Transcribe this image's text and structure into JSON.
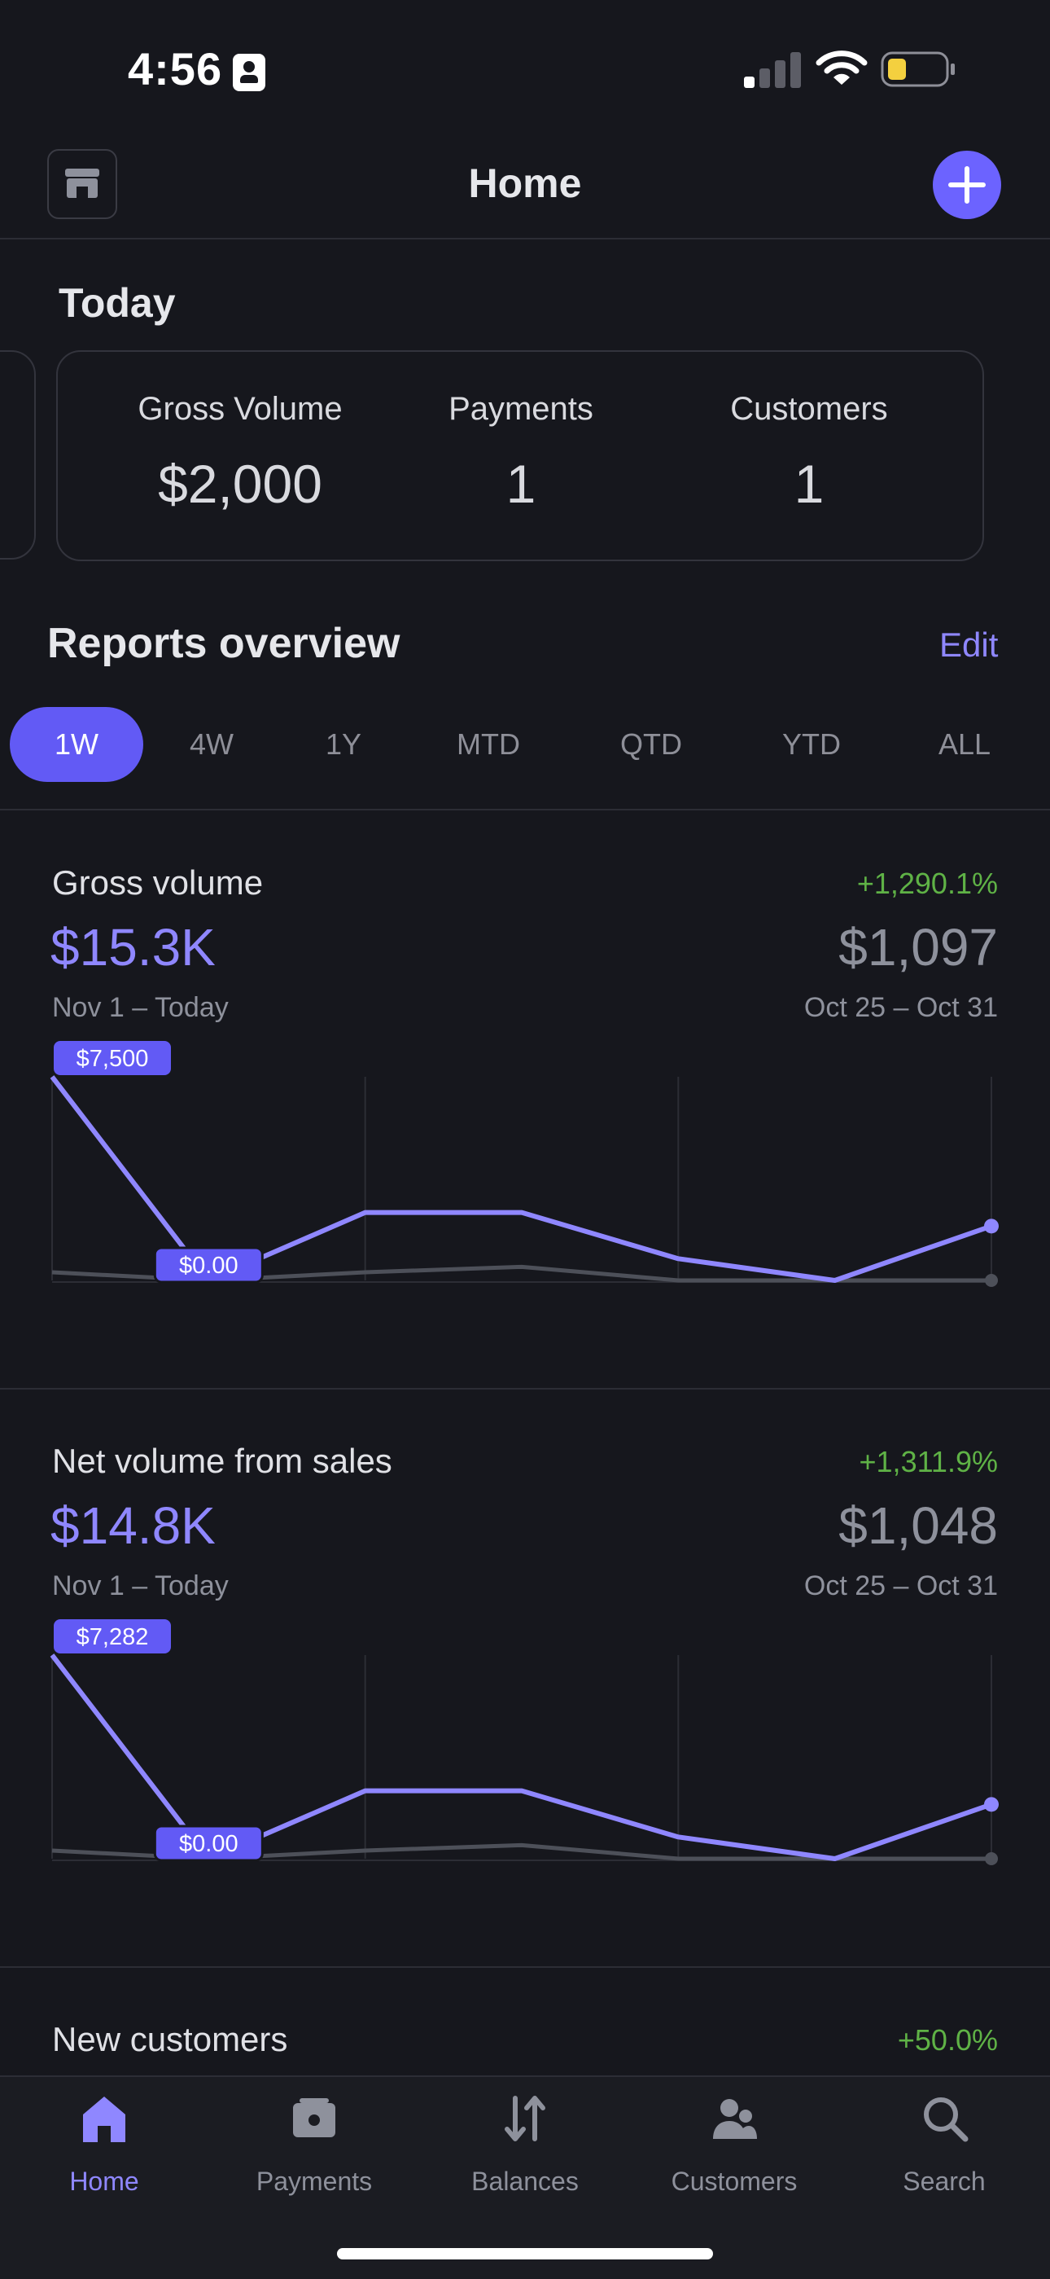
{
  "status_bar": {
    "time": "4:56"
  },
  "header": {
    "title": "Home"
  },
  "today": {
    "heading": "Today",
    "stats": [
      {
        "label": "Gross Volume",
        "value": "$2,000"
      },
      {
        "label": "Payments",
        "value": "1"
      },
      {
        "label": "Customers",
        "value": "1"
      }
    ]
  },
  "reports": {
    "heading": "Reports overview",
    "edit_label": "Edit",
    "tabs": [
      "1W",
      "4W",
      "1Y",
      "MTD",
      "QTD",
      "YTD",
      "ALL"
    ],
    "active_tab": "1W"
  },
  "metrics": [
    {
      "title": "Gross volume",
      "change": "+1,290.1%",
      "value": "$15.3K",
      "previous_value": "$1,097",
      "range": "Nov 1 – Today",
      "previous_range": "Oct 25 – Oct 31",
      "max_label": "$7,500",
      "min_label": "$0.00"
    },
    {
      "title": "Net volume from sales",
      "change": "+1,311.9%",
      "value": "$14.8K",
      "previous_value": "$1,048",
      "range": "Nov 1 – Today",
      "previous_range": "Oct 25 – Oct 31",
      "max_label": "$7,282",
      "min_label": "$0.00"
    },
    {
      "title": "New customers",
      "change": "+50.0%"
    }
  ],
  "chart_data": [
    {
      "type": "line",
      "title": "Gross volume",
      "x": [
        1,
        2,
        3,
        4,
        5,
        6,
        7
      ],
      "series": [
        {
          "name": "Nov 1 – Today",
          "values": [
            7500,
            0,
            2500,
            2500,
            800,
            0,
            2000
          ]
        },
        {
          "name": "Oct 25 – Oct 31",
          "values": [
            300,
            0,
            300,
            500,
            0,
            0,
            0
          ]
        }
      ],
      "ylim": [
        0,
        7500
      ]
    },
    {
      "type": "line",
      "title": "Net volume from sales",
      "x": [
        1,
        2,
        3,
        4,
        5,
        6,
        7
      ],
      "series": [
        {
          "name": "Nov 1 – Today",
          "values": [
            7282,
            0,
            2427,
            2427,
            777,
            0,
            1942
          ]
        },
        {
          "name": "Oct 25 – Oct 31",
          "values": [
            291,
            0,
            291,
            485,
            0,
            0,
            0
          ]
        }
      ],
      "ylim": [
        0,
        7282
      ]
    }
  ],
  "tab_bar": {
    "items": [
      {
        "label": "Home",
        "icon": "home-icon"
      },
      {
        "label": "Payments",
        "icon": "wallet-icon"
      },
      {
        "label": "Balances",
        "icon": "arrows-icon"
      },
      {
        "label": "Customers",
        "icon": "customers-icon"
      },
      {
        "label": "Search",
        "icon": "search-icon"
      }
    ],
    "active": "Home"
  },
  "colors": {
    "background": "#16171d",
    "accent": "#6c63ff",
    "accent_line": "#8f87ff",
    "positive": "#5fb246",
    "previous_line": "#4d5059"
  }
}
